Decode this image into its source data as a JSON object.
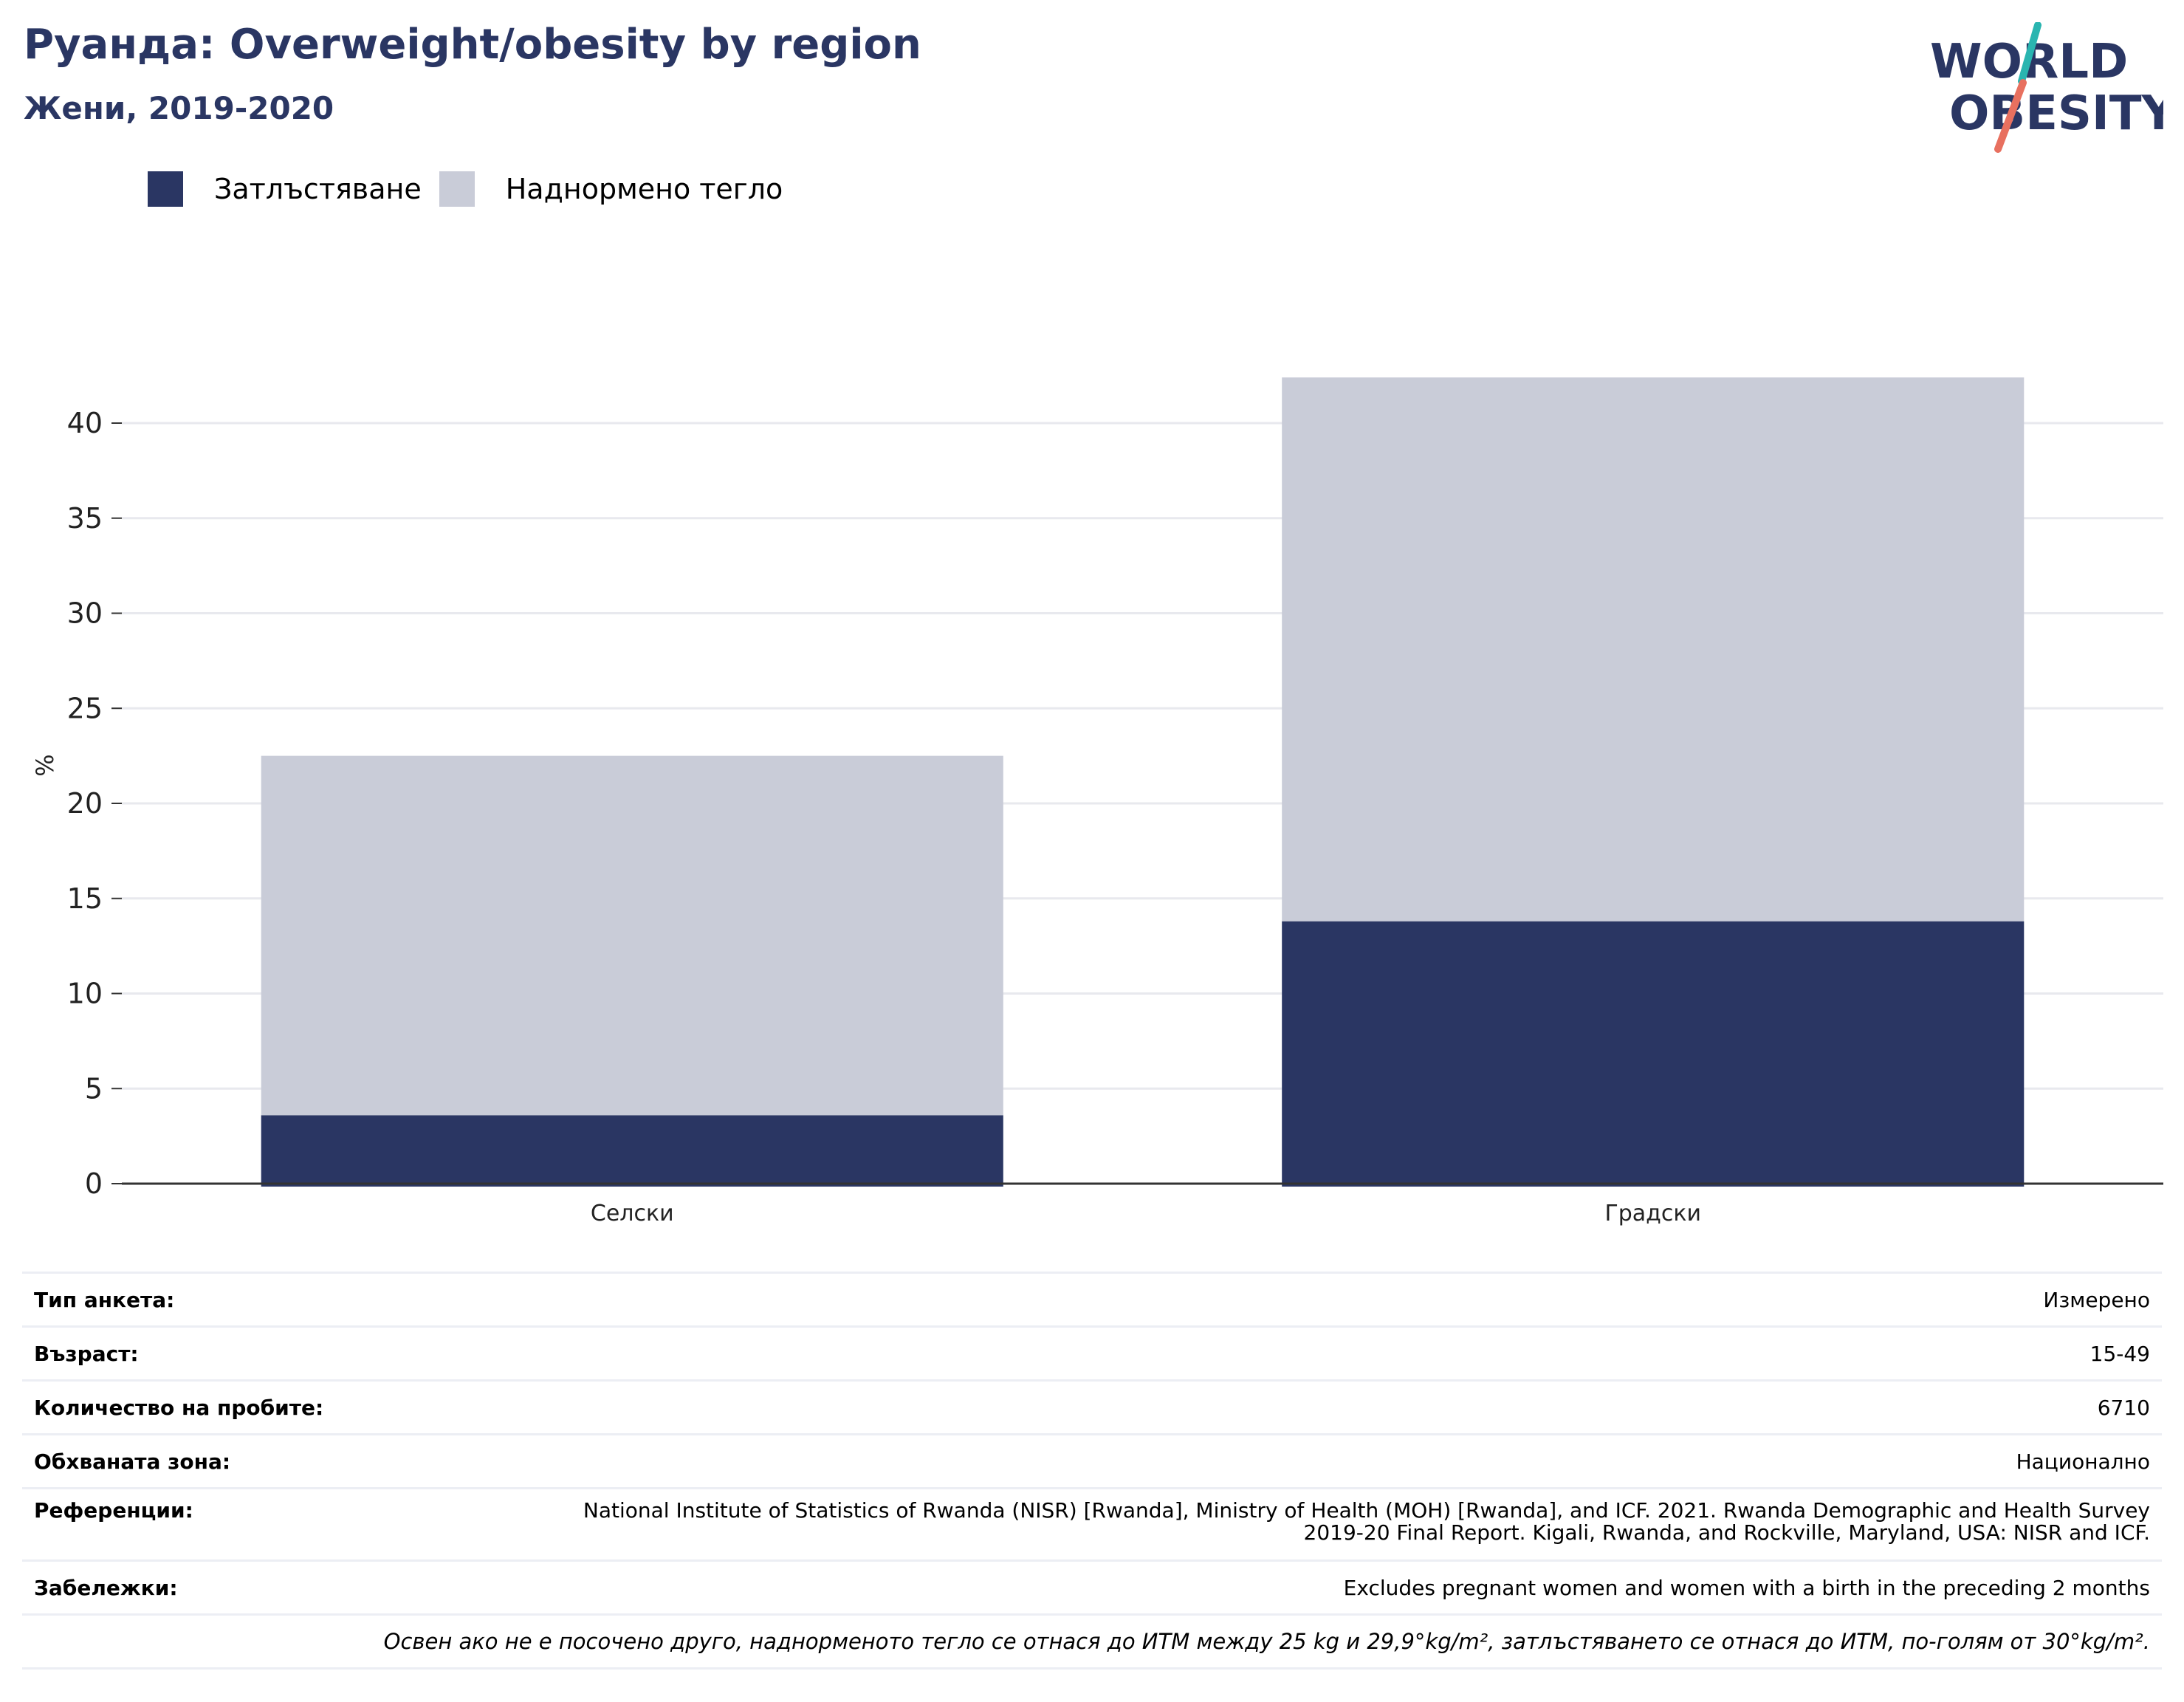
{
  "header": {
    "title": "Руанда: Overweight/obesity by region",
    "subtitle": "Жени, 2019-2020"
  },
  "logo": {
    "line1": "WORLD",
    "line2": "OBESITY",
    "accent_teal": "#2ab5b0",
    "accent_coral": "#e8705f"
  },
  "colors": {
    "obesity": "#2a3663",
    "overweight": "#c9ccd8",
    "axis": "#333333",
    "grid": "#e8e9ee"
  },
  "chart_data": {
    "type": "bar",
    "stacked": true,
    "categories": [
      "Селски",
      "Градски"
    ],
    "series": [
      {
        "name": "Затлъстяване",
        "values": [
          3.6,
          13.8
        ]
      },
      {
        "name": "Наднормено тегло",
        "values": [
          18.9,
          28.6
        ]
      }
    ],
    "ylabel": "%",
    "xlabel": "",
    "ylim": [
      0,
      44
    ],
    "yticks": [
      0,
      5,
      10,
      15,
      20,
      25,
      30,
      35,
      40
    ],
    "grid": true,
    "legend": "top-left"
  },
  "info": {
    "rows": [
      {
        "key": "Тип анкета:",
        "value": "Измерено"
      },
      {
        "key": "Възраст:",
        "value": "15-49"
      },
      {
        "key": "Количество на пробите:",
        "value": "6710"
      },
      {
        "key": "Обхваната зона:",
        "value": "Национално"
      },
      {
        "key": "Референции:",
        "value": "National Institute of Statistics of Rwanda (NISR) [Rwanda], Ministry of Health (MOH) [Rwanda], and ICF. 2021. Rwanda Demographic and Health Survey 2019-20 Final Report. Kigali, Rwanda, and Rockville, Maryland, USA: NISR and ICF."
      },
      {
        "key": "Забележки:",
        "value": "Excludes pregnant women and women with a birth in the preceding 2 months"
      }
    ],
    "footnote": "Освен ако не е посочено друго, наднорменото тегло се отнася до ИТМ между 25 kg и 29,9°kg/m², затлъстяването се отнася до ИТМ, по-голям от 30°kg/m²."
  }
}
